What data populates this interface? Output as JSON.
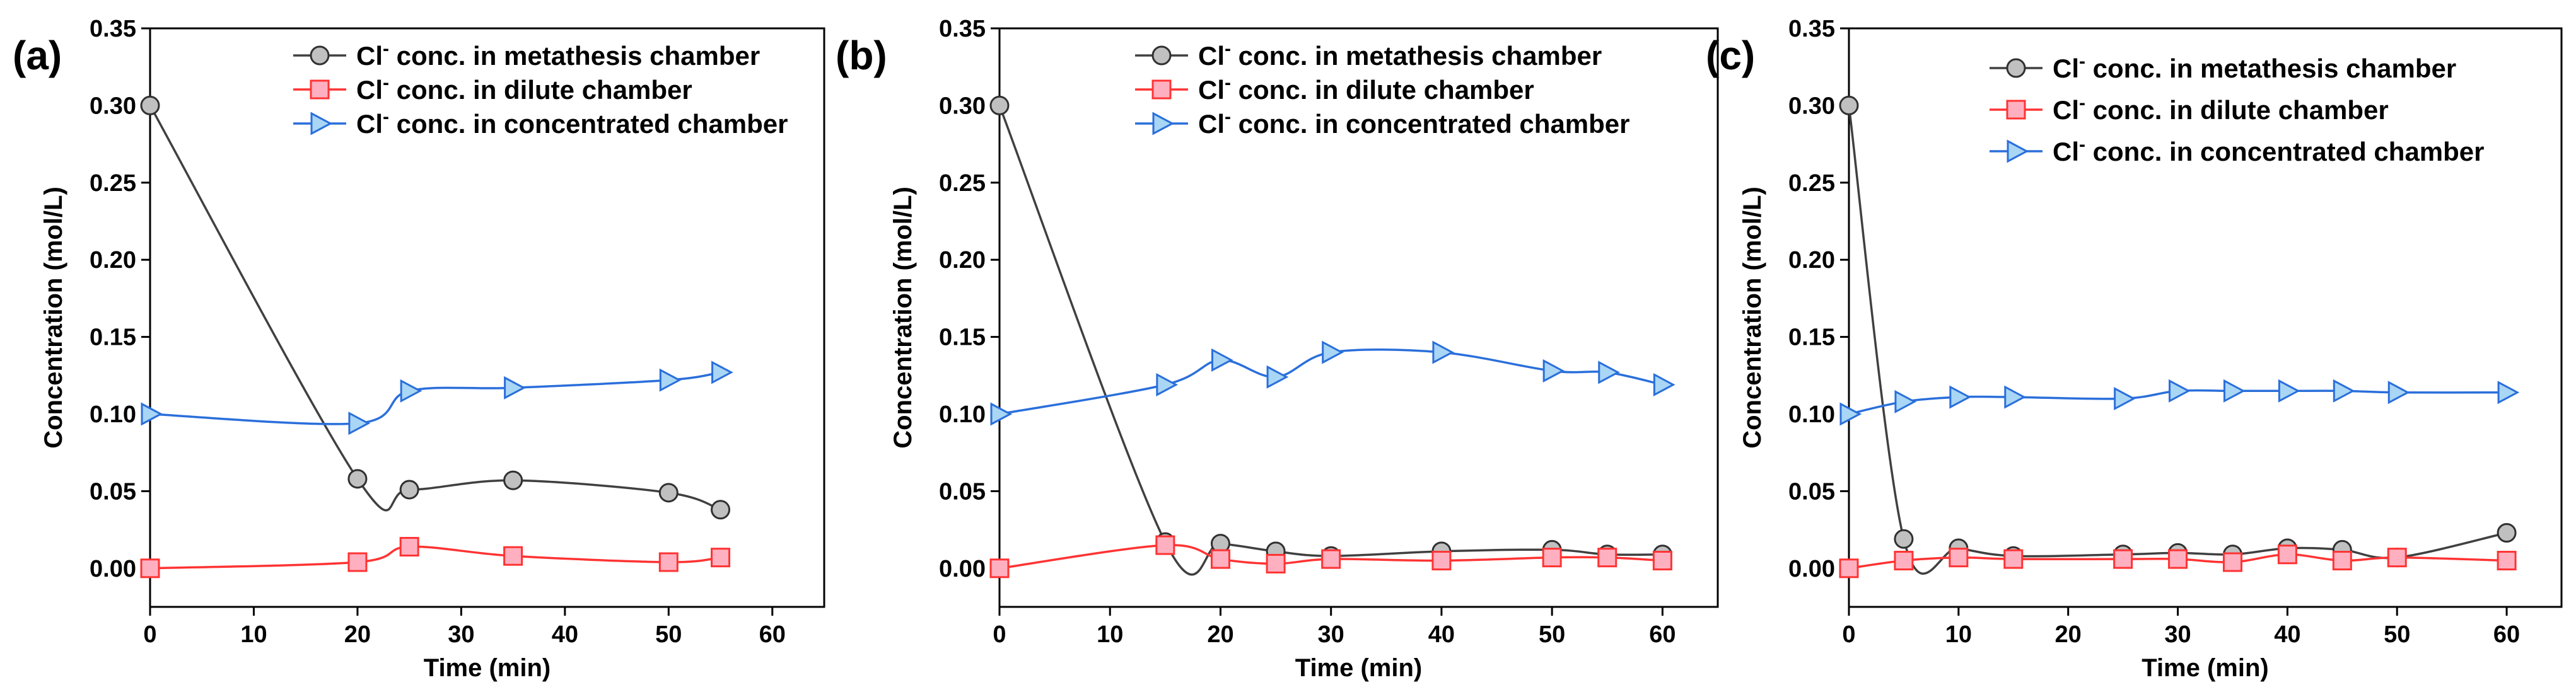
{
  "chart_data": [
    {
      "panel_label": "(a)",
      "type": "line",
      "xlabel": "Time (min)",
      "ylabel": "Concentration (mol/L)",
      "xlim": [
        0,
        65
      ],
      "ylim": [
        -0.025,
        0.35
      ],
      "xticks": [
        0,
        10,
        20,
        30,
        40,
        50,
        60
      ],
      "yticks": [
        0.0,
        0.05,
        0.1,
        0.15,
        0.2,
        0.25,
        0.3,
        0.35
      ],
      "xtick_labels": [
        "0",
        "10",
        "20",
        "30",
        "40",
        "50",
        "60"
      ],
      "ytick_labels": [
        "0.00",
        "0.05",
        "0.10",
        "0.15",
        "0.20",
        "0.25",
        "0.30",
        "0.35"
      ],
      "legend_position": "top-right",
      "series": [
        {
          "name": "metathesis",
          "label_prefix": "Cl",
          "label_sup": "-",
          "label_rest": " conc. in metathesis chamber",
          "marker": "circle",
          "color": "#404040",
          "fill": "#c0c0c0",
          "edge": "#303030",
          "x": [
            0,
            20,
            25,
            35,
            50,
            55
          ],
          "y": [
            0.3,
            0.058,
            0.051,
            0.057,
            0.049,
            0.038
          ]
        },
        {
          "name": "dilute",
          "label_prefix": "Cl",
          "label_sup": "-",
          "label_rest": " conc. in dilute chamber",
          "marker": "square",
          "color": "#ff3333",
          "fill": "#ffb0c0",
          "edge": "#ff3333",
          "x": [
            0,
            20,
            25,
            35,
            50,
            55
          ],
          "y": [
            0.0,
            0.004,
            0.014,
            0.008,
            0.004,
            0.007
          ]
        },
        {
          "name": "concentrated",
          "label_prefix": "Cl",
          "label_sup": "-",
          "label_rest": " conc. in concentrated chamber",
          "marker": "triangle-right",
          "color": "#2a6fdb",
          "fill": "#a9d6f5",
          "edge": "#2a6fdb",
          "x": [
            0,
            20,
            25,
            35,
            50,
            55
          ],
          "y": [
            0.1,
            0.094,
            0.115,
            0.117,
            0.122,
            0.127
          ]
        }
      ]
    },
    {
      "panel_label": "(b)",
      "type": "line",
      "xlabel": "Time (min)",
      "ylabel": "Concentration (mol/L)",
      "xlim": [
        0,
        65
      ],
      "ylim": [
        -0.025,
        0.35
      ],
      "xticks": [
        0,
        10,
        20,
        30,
        40,
        50,
        60
      ],
      "yticks": [
        0.0,
        0.05,
        0.1,
        0.15,
        0.2,
        0.25,
        0.3,
        0.35
      ],
      "xtick_labels": [
        "0",
        "10",
        "20",
        "30",
        "40",
        "50",
        "60"
      ],
      "ytick_labels": [
        "0.00",
        "0.05",
        "0.10",
        "0.15",
        "0.20",
        "0.25",
        "0.30",
        "0.35"
      ],
      "legend_position": "top-right",
      "series": [
        {
          "name": "metathesis",
          "label_prefix": "Cl",
          "label_sup": "-",
          "label_rest": " conc. in metathesis chamber",
          "marker": "circle",
          "color": "#404040",
          "fill": "#c0c0c0",
          "edge": "#303030",
          "x": [
            0,
            15,
            20,
            25,
            30,
            40,
            50,
            55,
            60
          ],
          "y": [
            0.3,
            0.017,
            0.016,
            0.011,
            0.008,
            0.011,
            0.012,
            0.009,
            0.009
          ]
        },
        {
          "name": "dilute",
          "label_prefix": "Cl",
          "label_sup": "-",
          "label_rest": " conc. in dilute chamber",
          "marker": "square",
          "color": "#ff3333",
          "fill": "#ffb0c0",
          "edge": "#ff3333",
          "x": [
            0,
            15,
            20,
            25,
            30,
            40,
            50,
            55,
            60
          ],
          "y": [
            0.0,
            0.015,
            0.006,
            0.003,
            0.006,
            0.005,
            0.007,
            0.007,
            0.005
          ]
        },
        {
          "name": "concentrated",
          "label_prefix": "Cl",
          "label_sup": "-",
          "label_rest": " conc. in concentrated chamber",
          "marker": "triangle-right",
          "color": "#2a6fdb",
          "fill": "#a9d6f5",
          "edge": "#2a6fdb",
          "x": [
            0,
            15,
            20,
            25,
            30,
            40,
            50,
            55,
            60
          ],
          "y": [
            0.1,
            0.119,
            0.135,
            0.124,
            0.14,
            0.14,
            0.128,
            0.127,
            0.119
          ]
        }
      ]
    },
    {
      "panel_label": "(c)",
      "type": "line",
      "xlabel": "Time (min)",
      "ylabel": "Concentration (mol/L)",
      "xlim": [
        0,
        65
      ],
      "ylim": [
        -0.025,
        0.35
      ],
      "xticks": [
        0,
        10,
        20,
        30,
        40,
        50,
        60
      ],
      "yticks": [
        0.0,
        0.05,
        0.1,
        0.15,
        0.2,
        0.25,
        0.3,
        0.35
      ],
      "xtick_labels": [
        "0",
        "10",
        "20",
        "30",
        "40",
        "50",
        "60"
      ],
      "ytick_labels": [
        "0.00",
        "0.05",
        "0.10",
        "0.15",
        "0.20",
        "0.25",
        "0.30",
        "0.35"
      ],
      "legend_position": "top-right",
      "series": [
        {
          "name": "metathesis",
          "label_prefix": "Cl",
          "label_sup": "-",
          "label_rest": " conc. in metathesis chamber",
          "marker": "circle",
          "color": "#404040",
          "fill": "#c0c0c0",
          "edge": "#303030",
          "x": [
            0,
            5,
            10,
            15,
            25,
            30,
            35,
            40,
            45,
            50,
            60
          ],
          "y": [
            0.3,
            0.019,
            0.013,
            0.008,
            0.009,
            0.01,
            0.009,
            0.013,
            0.012,
            0.007,
            0.023
          ]
        },
        {
          "name": "dilute",
          "label_prefix": "Cl",
          "label_sup": "-",
          "label_rest": " conc. in dilute chamber",
          "marker": "square",
          "color": "#ff3333",
          "fill": "#ffb0c0",
          "edge": "#ff3333",
          "x": [
            0,
            5,
            10,
            15,
            25,
            30,
            35,
            40,
            45,
            50,
            60
          ],
          "y": [
            0.0,
            0.005,
            0.007,
            0.006,
            0.006,
            0.006,
            0.004,
            0.009,
            0.005,
            0.007,
            0.005
          ]
        },
        {
          "name": "concentrated",
          "label_prefix": "Cl",
          "label_sup": "-",
          "label_rest": " conc. in concentrated chamber",
          "marker": "triangle-right",
          "color": "#2a6fdb",
          "fill": "#a9d6f5",
          "edge": "#2a6fdb",
          "x": [
            0,
            5,
            10,
            15,
            25,
            30,
            35,
            40,
            45,
            50,
            60
          ],
          "y": [
            0.1,
            0.108,
            0.111,
            0.111,
            0.11,
            0.115,
            0.115,
            0.115,
            0.115,
            0.114,
            0.114
          ]
        }
      ]
    }
  ]
}
